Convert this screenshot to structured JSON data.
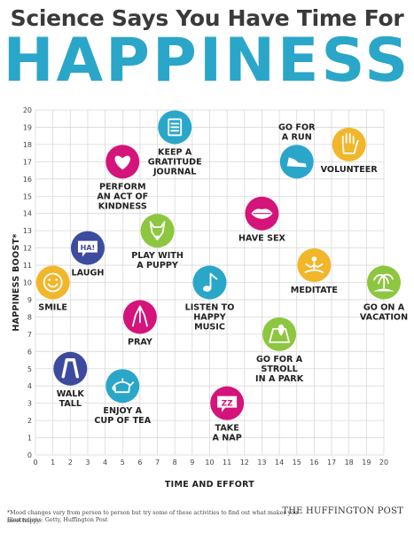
{
  "header": {
    "line1": "Science Says You Have Time For",
    "line2": "HAPPINESS"
  },
  "footer": {
    "footnote": "*Mood changes vary from person to person but try some of these activities to find out what makes you most happy.",
    "credit": "Illustrations: Getty, Huffington Post",
    "brand": "THE HUFFINGTON POST"
  },
  "chart_data": {
    "type": "scatter",
    "xlabel": "TIME AND EFFORT",
    "ylabel": "HAPPINESS BOOST*",
    "xlim": [
      0,
      20
    ],
    "ylim": [
      0,
      20
    ],
    "xticks": [
      "0",
      "1",
      "2",
      "3",
      "4",
      "5",
      "6",
      "7",
      "8",
      "9",
      "10",
      "11",
      "12",
      "13",
      "14",
      "15",
      "16",
      "17",
      "18",
      "19",
      "20"
    ],
    "yticks": [
      "0",
      "1",
      "2",
      "3",
      "4",
      "5",
      "6",
      "7",
      "8",
      "9",
      "10",
      "11",
      "12",
      "13",
      "14",
      "15",
      "16",
      "17",
      "18",
      "19",
      "20"
    ],
    "grid": true,
    "points": [
      {
        "label": [
          "KEEP A",
          "GRATITUDE",
          "JOURNAL"
        ],
        "x": 8,
        "y": 19,
        "color": "#2aa6c9",
        "icon": "notebook-icon",
        "label_pos": "below"
      },
      {
        "label": [
          "GO FOR",
          "A RUN"
        ],
        "x": 15,
        "y": 17,
        "color": "#2aa6c9",
        "icon": "sneaker-icon",
        "label_pos": "above"
      },
      {
        "label": [
          "VOLUNTEER"
        ],
        "x": 18,
        "y": 18,
        "color": "#f2b62b",
        "icon": "raised-hand-icon",
        "label_pos": "below"
      },
      {
        "label": [
          "PERFORM",
          "AN ACT OF",
          "KINDNESS"
        ],
        "x": 5,
        "y": 17,
        "color": "#d4147a",
        "icon": "heart-icon",
        "label_pos": "below"
      },
      {
        "label": [
          "HAVE SEX"
        ],
        "x": 13,
        "y": 14,
        "color": "#d4147a",
        "icon": "lips-icon",
        "label_pos": "below"
      },
      {
        "label": [
          "PLAY WITH",
          "A PUPPY"
        ],
        "x": 7,
        "y": 13,
        "color": "#8dc63f",
        "icon": "puppy-icon",
        "label_pos": "below"
      },
      {
        "label": [
          "LAUGH"
        ],
        "x": 3,
        "y": 12,
        "color": "#3d4b9e",
        "icon": "ha-speech-icon",
        "label_pos": "below"
      },
      {
        "label": [
          "SMILE"
        ],
        "x": 1,
        "y": 10,
        "color": "#f2b62b",
        "icon": "smiling-face-icon",
        "label_pos": "below"
      },
      {
        "label": [
          "MEDITATE"
        ],
        "x": 16,
        "y": 11,
        "color": "#f2b62b",
        "icon": "meditating-person-icon",
        "label_pos": "below"
      },
      {
        "label": [
          "GO ON A",
          "VACATION"
        ],
        "x": 20,
        "y": 10,
        "color": "#8dc63f",
        "icon": "palm-island-icon",
        "label_pos": "below"
      },
      {
        "label": [
          "LISTEN TO",
          "HAPPY",
          "MUSIC"
        ],
        "x": 10,
        "y": 10,
        "color": "#2aa6c9",
        "icon": "music-note-icon",
        "label_pos": "below"
      },
      {
        "label": [
          "PRAY"
        ],
        "x": 6,
        "y": 8,
        "color": "#d4147a",
        "icon": "praying-hands-icon",
        "label_pos": "below"
      },
      {
        "label": [
          "GO FOR A",
          "STROLL",
          "IN A PARK"
        ],
        "x": 14,
        "y": 7,
        "color": "#8dc63f",
        "icon": "map-pin-icon",
        "label_pos": "below"
      },
      {
        "label": [
          "WALK",
          "TALL"
        ],
        "x": 2,
        "y": 5,
        "color": "#3d4b9e",
        "icon": "walking-legs-icon",
        "label_pos": "below"
      },
      {
        "label": [
          "ENJOY A",
          "CUP OF TEA"
        ],
        "x": 5,
        "y": 4,
        "color": "#2aa6c9",
        "icon": "teapot-icon",
        "label_pos": "below"
      },
      {
        "label": [
          "TAKE",
          "A NAP"
        ],
        "x": 11,
        "y": 3,
        "color": "#d4147a",
        "icon": "zzz-sleep-icon",
        "label_pos": "below"
      }
    ]
  }
}
